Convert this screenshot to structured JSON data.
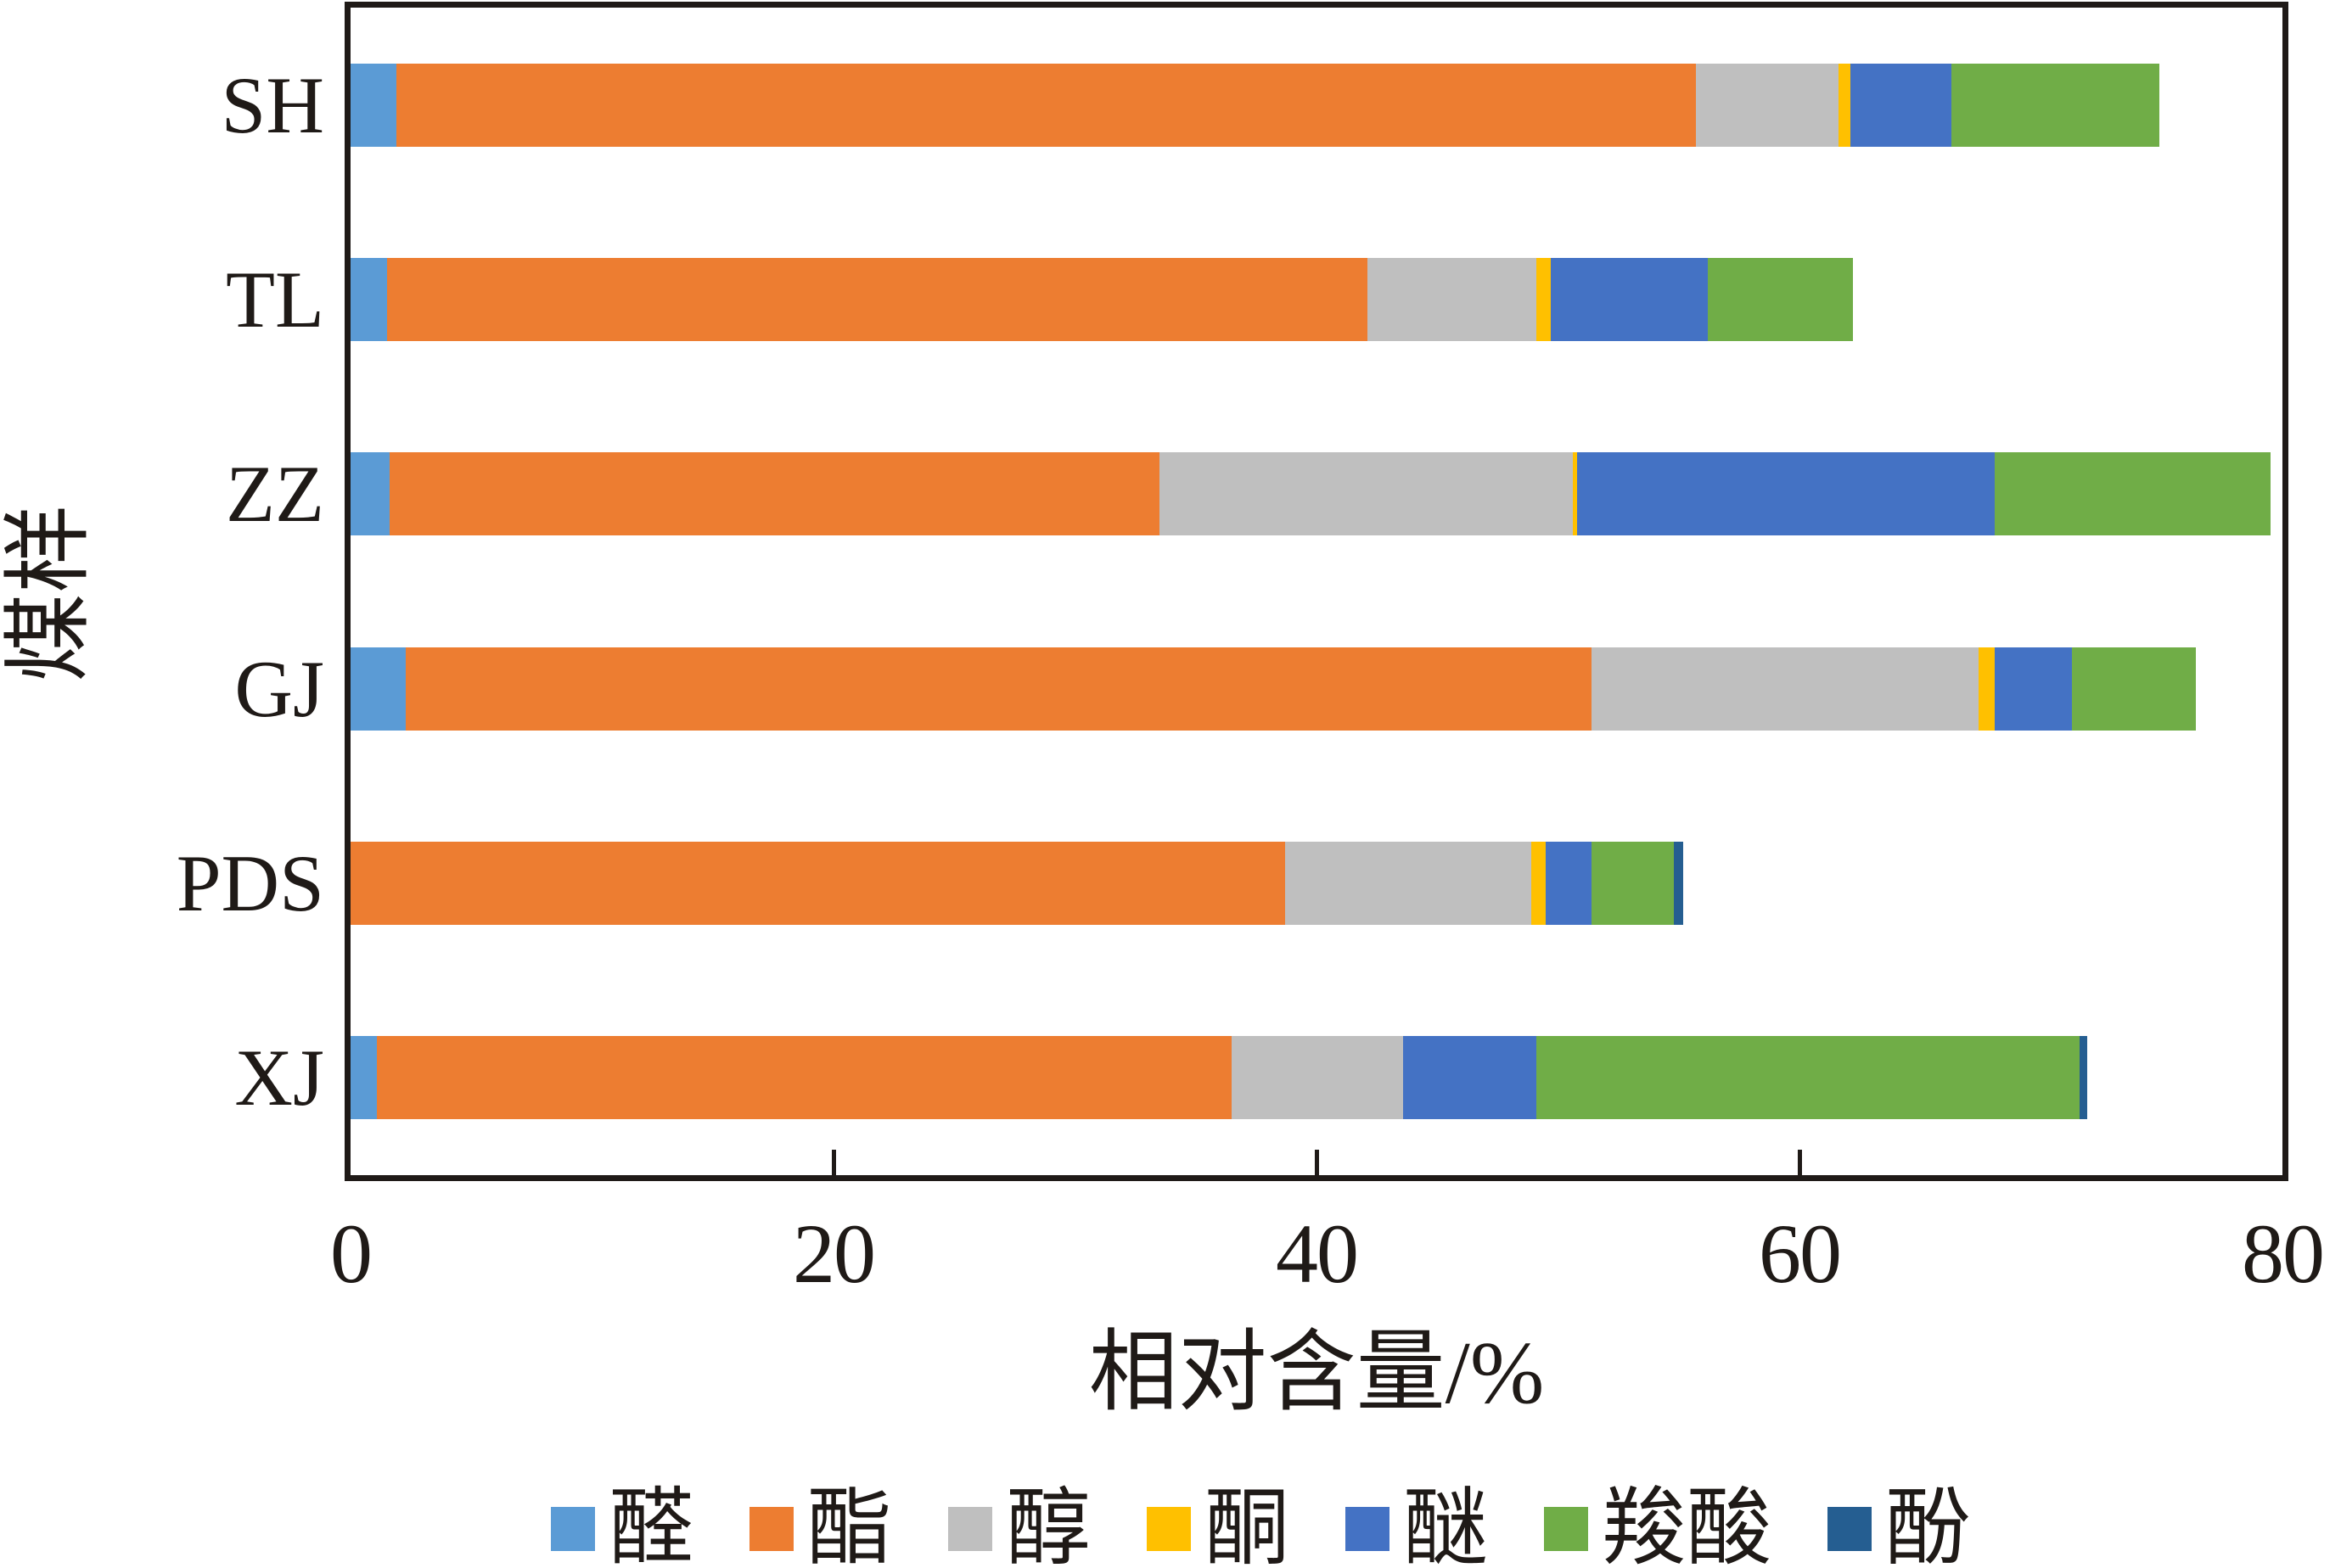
{
  "chart_data": {
    "type": "bar",
    "orientation": "horizontal-stacked",
    "title": "",
    "xlabel": "相对含量/%",
    "ylabel": "煤样",
    "xlim": [
      0,
      80
    ],
    "xticks": [
      0,
      20,
      40,
      60,
      80
    ],
    "grid": false,
    "legend_position": "bottom",
    "categories": [
      "SH",
      "TL",
      "ZZ",
      "GJ",
      "PDS",
      "XJ"
    ],
    "series": [
      {
        "name": "醛",
        "color": "#5B9BD5",
        "values": [
          1.9,
          1.5,
          1.6,
          2.3,
          0,
          1.1
        ]
      },
      {
        "name": "酯",
        "color": "#ED7D31",
        "values": [
          53.8,
          40.6,
          31.9,
          49.1,
          38.7,
          35.4
        ]
      },
      {
        "name": "醇",
        "color": "#BFBFBF",
        "values": [
          5.9,
          7.0,
          17.1,
          16.0,
          10.2,
          7.1
        ]
      },
      {
        "name": "酮",
        "color": "#FFC000",
        "values": [
          0.5,
          0.6,
          0.2,
          0.7,
          0.6,
          0
        ]
      },
      {
        "name": "醚",
        "color": "#4472C4",
        "values": [
          4.2,
          6.5,
          17.3,
          3.2,
          1.9,
          5.5
        ]
      },
      {
        "name": "羧酸",
        "color": "#70AD47",
        "values": [
          8.6,
          6.0,
          11.4,
          5.1,
          3.4,
          22.5
        ]
      },
      {
        "name": "酚",
        "color": "#255E91",
        "values": [
          0,
          0,
          0,
          0,
          0.4,
          0.3
        ]
      }
    ],
    "totals": [
      74.9,
      62.2,
      79.5,
      76.4,
      55.2,
      71.9
    ]
  }
}
